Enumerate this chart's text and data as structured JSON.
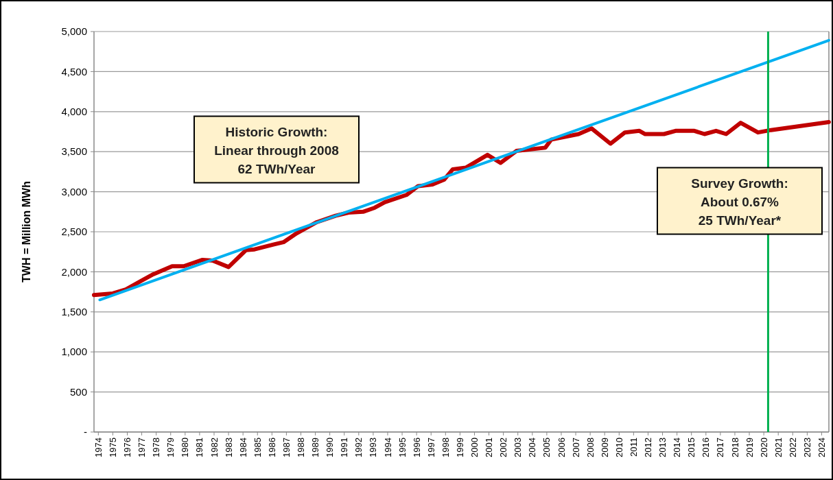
{
  "chart_data": {
    "type": "line",
    "ylabel": "TWH = Million MWh",
    "xlim": [
      1973.7,
      2024.5
    ],
    "xticks": [
      1974,
      1975,
      1976,
      1977,
      1978,
      1979,
      1980,
      1981,
      1982,
      1983,
      1984,
      1985,
      1986,
      1987,
      1988,
      1989,
      1990,
      1991,
      1992,
      1993,
      1994,
      1995,
      1996,
      1997,
      1998,
      1999,
      2000,
      2001,
      2002,
      2003,
      2004,
      2005,
      2006,
      2007,
      2008,
      2009,
      2010,
      2011,
      2012,
      2013,
      2014,
      2015,
      2016,
      2017,
      2018,
      2019,
      2020,
      2021,
      2022,
      2023,
      2024
    ],
    "ylim": [
      0,
      5000
    ],
    "yticks": [
      {
        "value": 0,
        "label": "-"
      },
      {
        "value": 500,
        "label": "500"
      },
      {
        "value": 1000,
        "label": "1,000"
      },
      {
        "value": 1500,
        "label": "1,500"
      },
      {
        "value": 2000,
        "label": "2,000"
      },
      {
        "value": 2500,
        "label": "2,500"
      },
      {
        "value": 3000,
        "label": "3,000"
      },
      {
        "value": 3500,
        "label": "3,500"
      },
      {
        "value": 4000,
        "label": "4,000"
      },
      {
        "value": 4500,
        "label": "4,500"
      },
      {
        "value": 5000,
        "label": "5,000"
      }
    ],
    "grid": "y",
    "marker": "none",
    "line_style": "solid",
    "series": [
      {
        "color": "#c00000",
        "x": [
          1973.7,
          1975.0,
          1975.9,
          1977.0,
          1977.8,
          1979.1,
          1979.9,
          1981.2,
          1981.9,
          1983.0,
          1984.2,
          1984.8,
          1986.1,
          1986.8,
          1987.7,
          1989.1,
          1990.4,
          1991.3,
          1992.3,
          1993.1,
          1993.8,
          1995.3,
          1996.1,
          1997.1,
          1997.9,
          1998.5,
          1999.4,
          2000.9,
          2001.8,
          2002.9,
          2004.9,
          2005.3,
          2007.2,
          2008.1,
          2009.4,
          2010.4,
          2011.4,
          2011.8,
          2013.1,
          2013.9,
          2015.2,
          2015.9,
          2016.7,
          2017.4,
          2018.4,
          2019.6,
          2020.5,
          2024.5
        ],
        "values": [
          1710,
          1730,
          1780,
          1890,
          1970,
          2070,
          2070,
          2150,
          2140,
          2060,
          2270,
          2280,
          2340,
          2370,
          2480,
          2620,
          2700,
          2740,
          2750,
          2800,
          2870,
          2960,
          3070,
          3090,
          3150,
          3280,
          3300,
          3460,
          3360,
          3510,
          3550,
          3650,
          3720,
          3790,
          3600,
          3740,
          3760,
          3720,
          3720,
          3760,
          3760,
          3720,
          3760,
          3720,
          3860,
          3740,
          3770,
          3870
        ]
      },
      {
        "color": "#00b0f0",
        "x": [
          1974.1,
          2024.5
        ],
        "values": [
          1650,
          4890
        ]
      }
    ],
    "ref_lines": [
      {
        "axis": "x",
        "value": 2020.3,
        "color": "#00b050"
      }
    ],
    "annotations": [
      "Historic Growth:\nLinear through 2008\n62 TWh/Year",
      "Survey Growth:\nAbout 0.67%\n25 TWh/Year*"
    ]
  }
}
